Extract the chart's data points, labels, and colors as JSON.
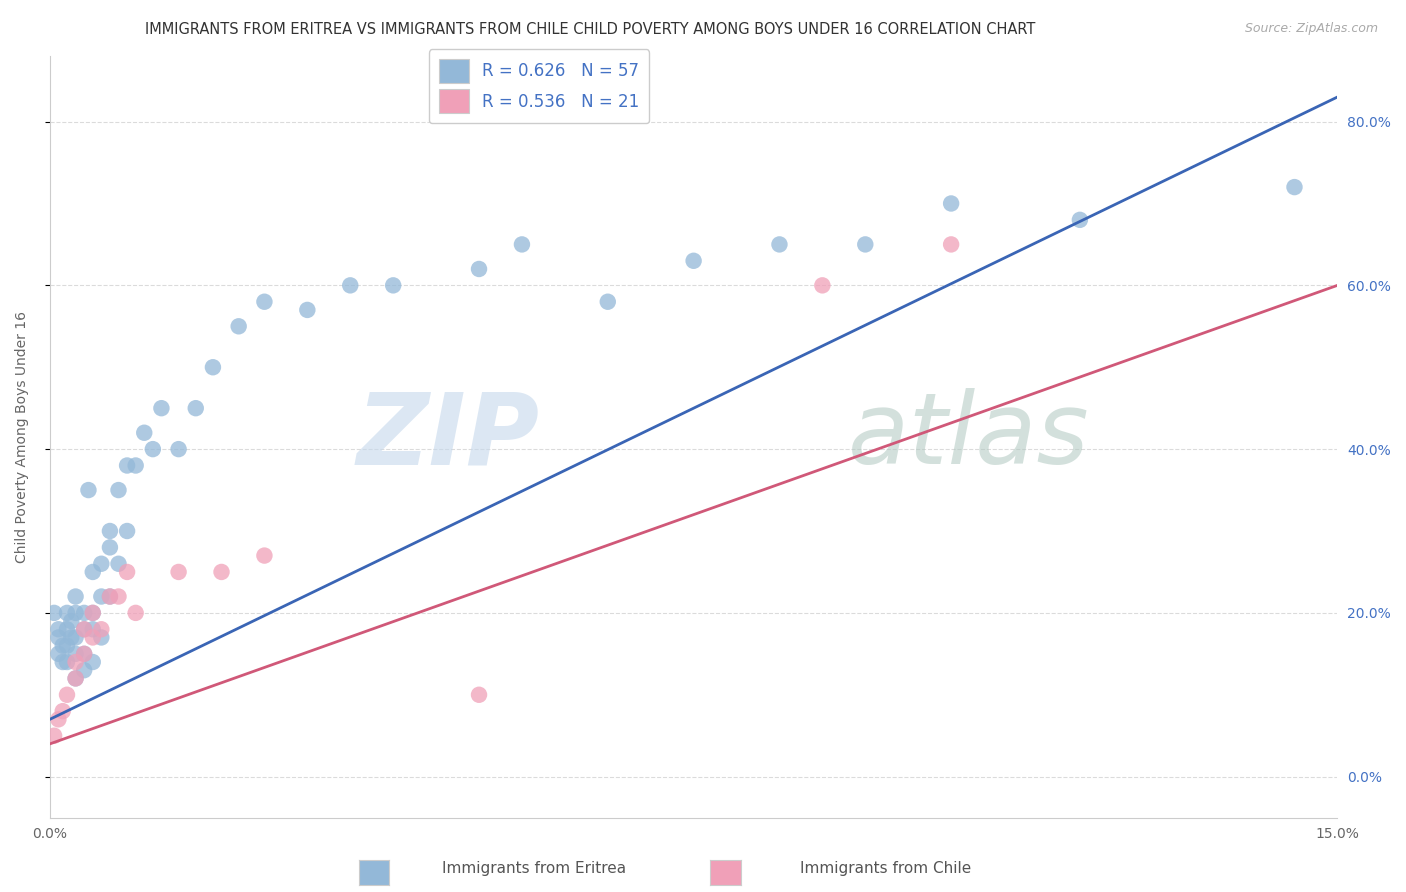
{
  "title": "IMMIGRANTS FROM ERITREA VS IMMIGRANTS FROM CHILE CHILD POVERTY AMONG BOYS UNDER 16 CORRELATION CHART",
  "source": "Source: ZipAtlas.com",
  "ylabel": "Child Poverty Among Boys Under 16",
  "xmin": 0.0,
  "xmax": 0.15,
  "ymin": -0.05,
  "ymax": 0.88,
  "yticks": [
    0.0,
    0.2,
    0.4,
    0.6,
    0.8
  ],
  "ytick_labels": [
    "0.0%",
    "20.0%",
    "40.0%",
    "60.0%",
    "80.0%"
  ],
  "xticks": [
    0.0,
    0.15
  ],
  "xtick_labels": [
    "0.0%",
    "15.0%"
  ],
  "legend_r_eritrea": "R = 0.626",
  "legend_n_eritrea": "N = 57",
  "legend_r_chile": "R = 0.536",
  "legend_n_chile": "N = 21",
  "eritrea_color": "#93b8d8",
  "eritrea_line_color": "#3a65b5",
  "chile_color": "#f0a0b8",
  "chile_line_color": "#d05878",
  "background_color": "#ffffff",
  "grid_color": "#cccccc",
  "right_tick_color": "#4472c4",
  "eritrea_x": [
    0.0005,
    0.001,
    0.001,
    0.001,
    0.0015,
    0.0015,
    0.002,
    0.002,
    0.002,
    0.002,
    0.0025,
    0.0025,
    0.003,
    0.003,
    0.003,
    0.003,
    0.003,
    0.004,
    0.004,
    0.004,
    0.004,
    0.0045,
    0.005,
    0.005,
    0.005,
    0.005,
    0.006,
    0.006,
    0.006,
    0.007,
    0.007,
    0.007,
    0.008,
    0.008,
    0.009,
    0.009,
    0.01,
    0.011,
    0.012,
    0.013,
    0.015,
    0.017,
    0.019,
    0.022,
    0.025,
    0.03,
    0.035,
    0.04,
    0.05,
    0.055,
    0.065,
    0.075,
    0.085,
    0.095,
    0.105,
    0.12,
    0.145
  ],
  "eritrea_y": [
    0.2,
    0.15,
    0.17,
    0.18,
    0.14,
    0.16,
    0.14,
    0.16,
    0.18,
    0.2,
    0.17,
    0.19,
    0.12,
    0.15,
    0.17,
    0.2,
    0.22,
    0.13,
    0.15,
    0.18,
    0.2,
    0.35,
    0.14,
    0.18,
    0.2,
    0.25,
    0.17,
    0.22,
    0.26,
    0.22,
    0.28,
    0.3,
    0.26,
    0.35,
    0.3,
    0.38,
    0.38,
    0.42,
    0.4,
    0.45,
    0.4,
    0.45,
    0.5,
    0.55,
    0.58,
    0.57,
    0.6,
    0.6,
    0.62,
    0.65,
    0.58,
    0.63,
    0.65,
    0.65,
    0.7,
    0.68,
    0.72
  ],
  "chile_x": [
    0.0005,
    0.001,
    0.0015,
    0.002,
    0.003,
    0.003,
    0.004,
    0.004,
    0.005,
    0.005,
    0.006,
    0.007,
    0.008,
    0.009,
    0.01,
    0.015,
    0.02,
    0.025,
    0.05,
    0.09,
    0.105
  ],
  "chile_y": [
    0.05,
    0.07,
    0.08,
    0.1,
    0.12,
    0.14,
    0.15,
    0.18,
    0.17,
    0.2,
    0.18,
    0.22,
    0.22,
    0.25,
    0.2,
    0.25,
    0.25,
    0.27,
    0.1,
    0.6,
    0.65
  ],
  "title_fontsize": 10.5,
  "axis_label_fontsize": 10,
  "tick_fontsize": 10
}
